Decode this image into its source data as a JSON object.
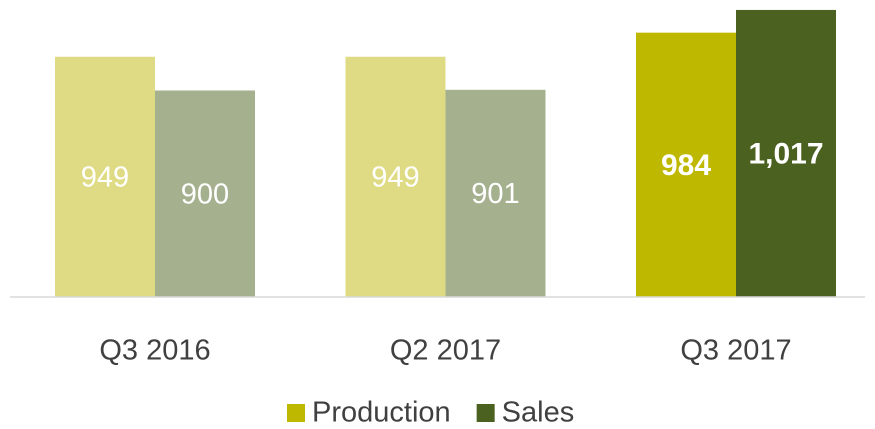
{
  "chart_data": {
    "type": "bar",
    "categories": [
      "Q3 2016",
      "Q2 2017",
      "Q3 2017"
    ],
    "series": [
      {
        "name": "Production",
        "color": "#bfb800",
        "colors": [
          "#dfdb85",
          "#dfdb85",
          "#bfb800"
        ],
        "values": [
          949,
          949,
          984
        ],
        "value_label_bold": [
          false,
          false,
          true
        ]
      },
      {
        "name": "Sales",
        "color": "#4b6120",
        "colors": [
          "#a5b08f",
          "#a5b08f",
          "#4b6120"
        ],
        "values": [
          900,
          901,
          1017
        ],
        "value_labels": [
          "900",
          "901",
          "1,017"
        ],
        "value_label_bold": [
          false,
          false,
          true
        ]
      }
    ],
    "ylim": [
      600,
      1030
    ],
    "legend": "bottom"
  }
}
